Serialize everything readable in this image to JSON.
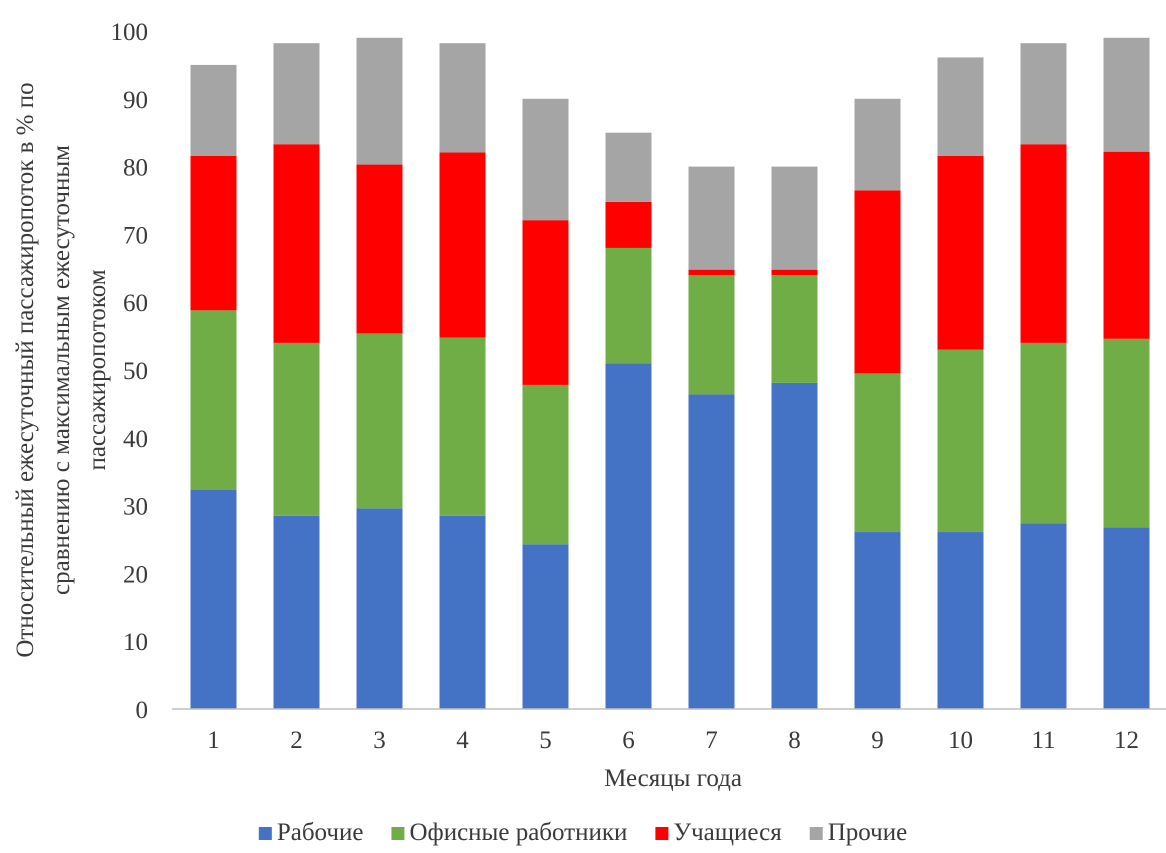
{
  "chart_data": {
    "type": "bar",
    "stacked": true,
    "title": "",
    "xlabel": "Месяцы года",
    "ylabel_lines": [
      "Относительный ежесуточный пассажиропоток в % по",
      "сравнению с максимальным ежесуточным",
      "пассажиропотоком"
    ],
    "categories": [
      "1",
      "2",
      "3",
      "4",
      "5",
      "6",
      "7",
      "8",
      "9",
      "10",
      "11",
      "12"
    ],
    "ylim": [
      0,
      100
    ],
    "yticks": [
      "0",
      "10",
      "20",
      "30",
      "40",
      "50",
      "60",
      "70",
      "80",
      "90",
      "100"
    ],
    "grid": false,
    "legend_position": "bottom",
    "series": [
      {
        "name": "Рабочие",
        "color": "#4472C4",
        "values": [
          32.3,
          28.5,
          29.6,
          28.5,
          24.3,
          51.0,
          46.4,
          48.1,
          26.1,
          26.1,
          27.4,
          26.8
        ]
      },
      {
        "name": "Офисные работники",
        "color": "#70AD47",
        "values": [
          26.5,
          25.5,
          25.8,
          26.3,
          23.5,
          17.0,
          17.6,
          15.9,
          23.4,
          26.9,
          26.6,
          27.8
        ]
      },
      {
        "name": "Учащиеся",
        "color": "#FF0000",
        "values": [
          22.8,
          29.3,
          24.9,
          27.3,
          24.3,
          6.8,
          0.8,
          0.8,
          27.0,
          28.6,
          29.3,
          27.6
        ]
      },
      {
        "name": "Прочие",
        "color": "#A5A5A5",
        "values": [
          13.4,
          14.9,
          18.7,
          16.1,
          17.9,
          10.2,
          15.2,
          15.2,
          13.5,
          14.5,
          14.9,
          16.8
        ]
      }
    ]
  }
}
